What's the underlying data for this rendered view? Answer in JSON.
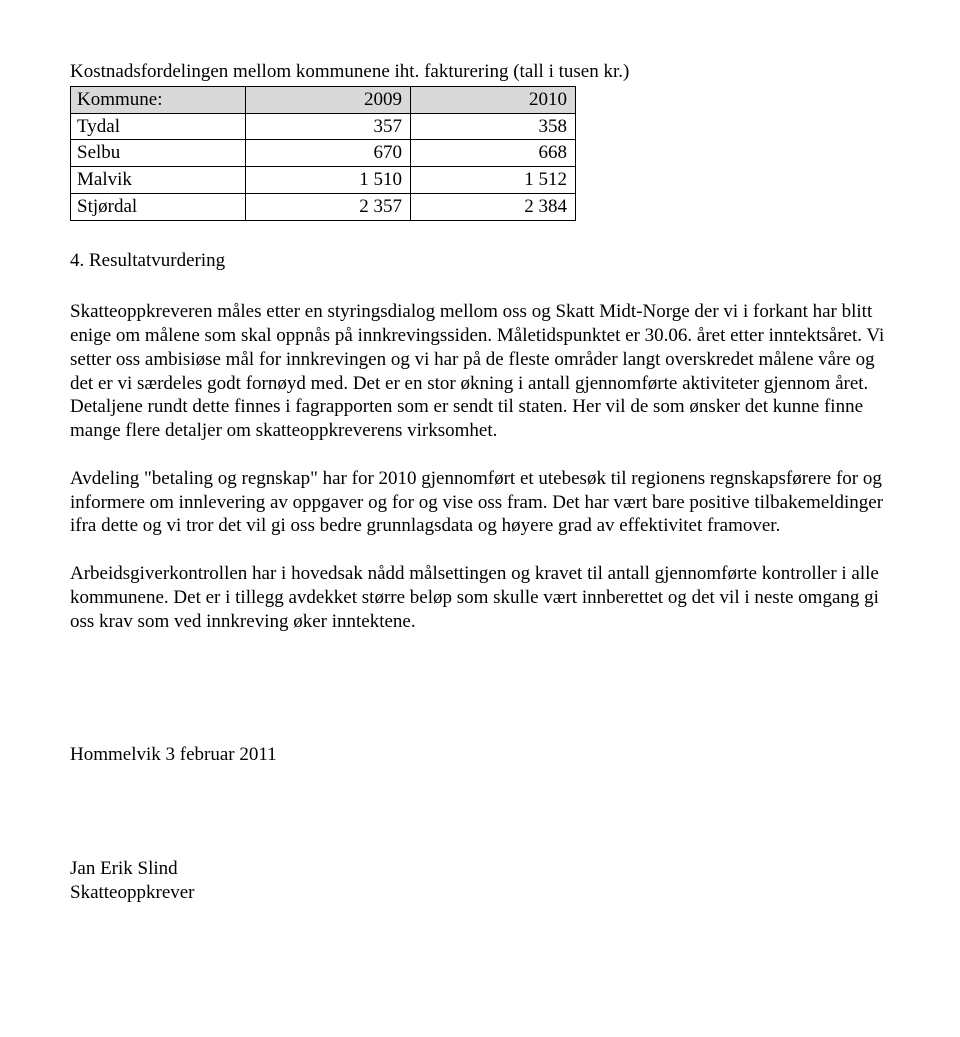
{
  "table": {
    "title": "Kostnadsfordelingen mellom kommunene iht. fakturering (tall i tusen kr.)",
    "header_label": "Kommune:",
    "col1": "2009",
    "col2": "2010",
    "rows": [
      {
        "name": "Tydal",
        "v1": "357",
        "v2": "358"
      },
      {
        "name": "Selbu",
        "v1": "670",
        "v2": "668"
      },
      {
        "name": "Malvik",
        "v1": "1 510",
        "v2": "1 512"
      },
      {
        "name": "Stjørdal",
        "v1": "2 357",
        "v2": "2 384"
      }
    ]
  },
  "section_heading": "4. Resultatvurdering",
  "paragraphs": {
    "p1": "Skatteoppkreveren måles etter en styringsdialog mellom oss og Skatt Midt-Norge der vi i forkant har blitt enige om målene som skal oppnås på innkrevingssiden. Måletidspunktet er 30.06. året etter inntektsåret. Vi setter oss ambisiøse mål for innkrevingen og vi har på de fleste områder langt overskredet målene våre og det er vi særdeles godt fornøyd med. Det er en stor økning i antall gjennomførte aktiviteter gjennom året. Detaljene rundt dette finnes i fagrapporten som er sendt til staten. Her vil de som ønsker det kunne finne mange flere detaljer om skatteoppkreverens virksomhet.",
    "p2": "Avdeling \"betaling og regnskap\" har for 2010 gjennomført et utebesøk til regionens regnskapsførere for og informere om innlevering av oppgaver og for og vise oss fram. Det har vært bare positive tilbakemeldinger ifra dette og vi tror det vil gi oss bedre grunnlagsdata og høyere grad av effektivitet framover.",
    "p3": "Arbeidsgiverkontrollen har i hovedsak nådd målsettingen og kravet til antall gjennomførte kontroller i alle kommunene. Det er i tillegg avdekket større beløp som skulle vært innberettet og det vil i neste omgang gi oss krav som ved innkreving øker inntektene."
  },
  "signature": {
    "place_date": "Hommelvik 3 februar 2011",
    "name": "Jan Erik Slind",
    "title": "Skatteoppkrever"
  }
}
